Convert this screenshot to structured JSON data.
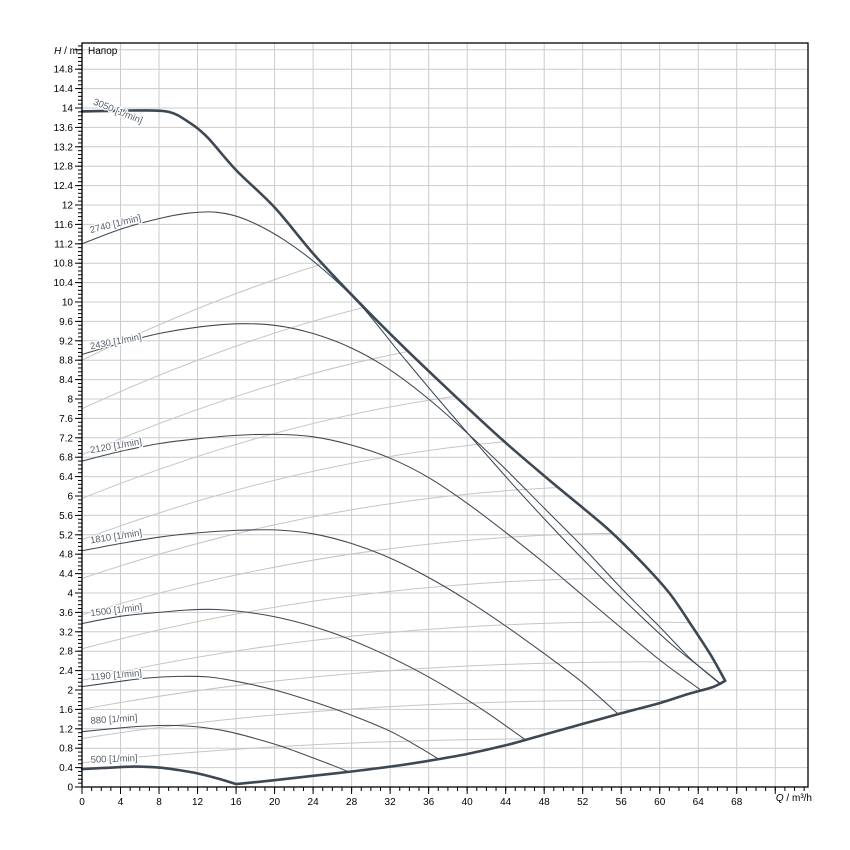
{
  "title": "Напор",
  "axes": {
    "y": {
      "symbol": "H",
      "unit": " / m",
      "max": 15.34,
      "label_step": 0.4,
      "minor_step": 0.08,
      "tick_labels": [
        "0",
        "0.4",
        "0.8",
        "1.2",
        "1.6",
        "2",
        "2.4",
        "2.8",
        "3.2",
        "3.6",
        "4",
        "4.4",
        "4.8",
        "5.2",
        "5.6",
        "6",
        "6.4",
        "6.8",
        "7.2",
        "7.6",
        "8",
        "8.4",
        "8.8",
        "9.2",
        "9.6",
        "10",
        "10.4",
        "10.8",
        "11.2",
        "11.6",
        "12",
        "12.4",
        "12.8",
        "13.2",
        "13.6",
        "14",
        "14.4",
        "14.8"
      ]
    },
    "x": {
      "symbol": "Q",
      "unit": " / m³/h",
      "max": 75.4,
      "label_step": 4,
      "minor_step": 1,
      "tick_labels": [
        "0",
        "4",
        "8",
        "12",
        "16",
        "20",
        "24",
        "28",
        "32",
        "36",
        "40",
        "44",
        "48",
        "52",
        "56",
        "60",
        "64",
        "68"
      ]
    }
  },
  "colors": {
    "background": "#ffffff",
    "curve": "#3d4854",
    "grid": "#cccccc",
    "efficiency": "#c5c5c5",
    "axis": "#000000",
    "tick_text": "#000000",
    "curve_label": "#555f6a"
  },
  "chart_data": {
    "type": "line",
    "title": "Напор",
    "xlabel": "Q / m³/h",
    "ylabel": "H / m",
    "xlim": [
      0,
      75.4
    ],
    "ylim": [
      0,
      15.34
    ],
    "grid": {
      "on": true,
      "x_step": 4,
      "y_step": 0.4
    },
    "legend": "labels-on-curves",
    "series": [
      {
        "name": "3050 [1/min]",
        "rpm": 3050,
        "thick": true,
        "points": [
          [
            0,
            13.93
          ],
          [
            3,
            13.94
          ],
          [
            6,
            13.95
          ],
          [
            9,
            13.92
          ],
          [
            11,
            13.72
          ],
          [
            13,
            13.4
          ],
          [
            16,
            12.72
          ],
          [
            20,
            11.95
          ],
          [
            24,
            11.0
          ],
          [
            28,
            10.15
          ],
          [
            33,
            9.15
          ],
          [
            38,
            8.2
          ],
          [
            43.7,
            7.15
          ],
          [
            49,
            6.25
          ],
          [
            54.5,
            5.34
          ],
          [
            58,
            4.66
          ],
          [
            61,
            4.0
          ],
          [
            63.4,
            3.3
          ],
          [
            65.3,
            2.72
          ],
          [
            66.8,
            2.19
          ]
        ]
      },
      {
        "name": "2740 [1/min]",
        "rpm": 2740,
        "thick": false,
        "points": [
          [
            0,
            11.2
          ],
          [
            4,
            11.5
          ],
          [
            8,
            11.72
          ],
          [
            11,
            11.83
          ],
          [
            14,
            11.85
          ],
          [
            17,
            11.7
          ],
          [
            21,
            11.28
          ],
          [
            25,
            10.68
          ],
          [
            29,
            9.92
          ],
          [
            33,
            8.95
          ],
          [
            37,
            8.0
          ],
          [
            41,
            7.08
          ],
          [
            45,
            6.18
          ],
          [
            49,
            5.32
          ],
          [
            53,
            4.5
          ],
          [
            57,
            3.72
          ],
          [
            61,
            2.98
          ],
          [
            64,
            2.5
          ],
          [
            66.4,
            2.12
          ]
        ]
      },
      {
        "name": "2430 [1/min]",
        "rpm": 2430,
        "thick": false,
        "points": [
          [
            0,
            8.92
          ],
          [
            4,
            9.15
          ],
          [
            8,
            9.35
          ],
          [
            12,
            9.48
          ],
          [
            16,
            9.55
          ],
          [
            20,
            9.52
          ],
          [
            24,
            9.35
          ],
          [
            28,
            9.05
          ],
          [
            32,
            8.6
          ],
          [
            36,
            8.0
          ],
          [
            40,
            7.3
          ],
          [
            44,
            6.55
          ],
          [
            48,
            5.75
          ],
          [
            52,
            4.95
          ],
          [
            56,
            4.1
          ],
          [
            60,
            3.3
          ],
          [
            63,
            2.68
          ],
          [
            65.2,
            2.3
          ],
          [
            66.3,
            2.12
          ]
        ]
      },
      {
        "name": "2120 [1/min]",
        "rpm": 2120,
        "thick": false,
        "points": [
          [
            0,
            6.72
          ],
          [
            4,
            6.92
          ],
          [
            8,
            7.08
          ],
          [
            12,
            7.18
          ],
          [
            16,
            7.25
          ],
          [
            20,
            7.27
          ],
          [
            24,
            7.22
          ],
          [
            28,
            7.05
          ],
          [
            32,
            6.78
          ],
          [
            36,
            6.38
          ],
          [
            40,
            5.85
          ],
          [
            44,
            5.25
          ],
          [
            48,
            4.62
          ],
          [
            52,
            3.95
          ],
          [
            56,
            3.28
          ],
          [
            60,
            2.62
          ],
          [
            62.5,
            2.25
          ],
          [
            64.4,
            1.98
          ]
        ]
      },
      {
        "name": "1810 [1/min]",
        "rpm": 1810,
        "thick": false,
        "points": [
          [
            0,
            4.87
          ],
          [
            4,
            5.02
          ],
          [
            8,
            5.15
          ],
          [
            12,
            5.24
          ],
          [
            16,
            5.29
          ],
          [
            20,
            5.3
          ],
          [
            24,
            5.22
          ],
          [
            28,
            5.02
          ],
          [
            32,
            4.72
          ],
          [
            36,
            4.32
          ],
          [
            40,
            3.85
          ],
          [
            44,
            3.32
          ],
          [
            48,
            2.75
          ],
          [
            52,
            2.15
          ],
          [
            55.6,
            1.52
          ]
        ]
      },
      {
        "name": "1500 [1/min]",
        "rpm": 1500,
        "thick": false,
        "points": [
          [
            0,
            3.37
          ],
          [
            4,
            3.52
          ],
          [
            8,
            3.6
          ],
          [
            11,
            3.65
          ],
          [
            14,
            3.66
          ],
          [
            18,
            3.58
          ],
          [
            22,
            3.42
          ],
          [
            26,
            3.18
          ],
          [
            30,
            2.86
          ],
          [
            34,
            2.48
          ],
          [
            38,
            2.04
          ],
          [
            42,
            1.54
          ],
          [
            46,
            0.98
          ]
        ]
      },
      {
        "name": "1190 [1/min]",
        "rpm": 1190,
        "thick": false,
        "points": [
          [
            0,
            2.07
          ],
          [
            4,
            2.18
          ],
          [
            7,
            2.25
          ],
          [
            10,
            2.28
          ],
          [
            13,
            2.27
          ],
          [
            16,
            2.18
          ],
          [
            20,
            2.0
          ],
          [
            24,
            1.76
          ],
          [
            28,
            1.48
          ],
          [
            32,
            1.15
          ],
          [
            35,
            0.82
          ],
          [
            37,
            0.58
          ]
        ]
      },
      {
        "name": "880 [1/min]",
        "rpm": 880,
        "thick": false,
        "points": [
          [
            0,
            1.14
          ],
          [
            3,
            1.2
          ],
          [
            6,
            1.25
          ],
          [
            9,
            1.27
          ],
          [
            12,
            1.24
          ],
          [
            15,
            1.15
          ],
          [
            18,
            1.0
          ],
          [
            21,
            0.82
          ],
          [
            24,
            0.6
          ],
          [
            26,
            0.45
          ],
          [
            27.6,
            0.32
          ]
        ]
      },
      {
        "name": "500 [1/min]",
        "rpm": 500,
        "thick": true,
        "points": [
          [
            0,
            0.37
          ],
          [
            2,
            0.39
          ],
          [
            4,
            0.41
          ],
          [
            5.5,
            0.42
          ],
          [
            8,
            0.4
          ],
          [
            10,
            0.35
          ],
          [
            12,
            0.28
          ],
          [
            14,
            0.18
          ],
          [
            16,
            0.06
          ]
        ]
      }
    ],
    "envelope_bottom": {
      "name": "operating-limit",
      "thick": true,
      "points": [
        [
          16,
          0.06
        ],
        [
          20,
          0.14
        ],
        [
          24,
          0.23
        ],
        [
          28,
          0.32
        ],
        [
          32,
          0.42
        ],
        [
          36,
          0.54
        ],
        [
          40,
          0.68
        ],
        [
          44,
          0.86
        ],
        [
          48,
          1.08
        ],
        [
          52,
          1.3
        ],
        [
          56,
          1.52
        ],
        [
          60,
          1.73
        ],
        [
          63,
          1.92
        ],
        [
          65.5,
          2.06
        ],
        [
          66.8,
          2.19
        ]
      ]
    },
    "efficiency_lines": [
      [
        0,
        0.5,
        30,
        1.15,
        70,
        0.95
      ],
      [
        0,
        1.0,
        30,
        1.95,
        70,
        1.75
      ],
      [
        0,
        1.6,
        31,
        2.75,
        70,
        2.55
      ],
      [
        0,
        2.2,
        32,
        3.65,
        70,
        3.35
      ],
      [
        0,
        2.85,
        33,
        4.6,
        70,
        4.25
      ],
      [
        0,
        3.55,
        34,
        5.6,
        70,
        5.15
      ],
      [
        0,
        4.3,
        35,
        6.65,
        70,
        6.1
      ],
      [
        0,
        5.1,
        36,
        7.75,
        70,
        7.1
      ],
      [
        0,
        5.95,
        37,
        8.9,
        70,
        8.15
      ],
      [
        0,
        6.85,
        38,
        10.1,
        70,
        9.25
      ],
      [
        0,
        7.8,
        39,
        11.35,
        70,
        10.4
      ],
      [
        0,
        8.8,
        40,
        12.65,
        70,
        11.6
      ]
    ],
    "curve_labels": [
      {
        "text": "3050 [1/min]",
        "x": 1.1,
        "y": 14.08,
        "rot": 22
      },
      {
        "text": "2740 [1/min]",
        "x": 0.9,
        "y": 11.42,
        "rot": -14
      },
      {
        "text": "2430 [1/min]",
        "x": 0.9,
        "y": 9.02,
        "rot": -11
      },
      {
        "text": "2120 [1/min]",
        "x": 0.9,
        "y": 6.88,
        "rot": -10
      },
      {
        "text": "1810 [1/min]",
        "x": 0.9,
        "y": 5.02,
        "rot": -9
      },
      {
        "text": "1500 [1/min]",
        "x": 0.9,
        "y": 3.52,
        "rot": -7
      },
      {
        "text": "1190 [1/min]",
        "x": 0.9,
        "y": 2.2,
        "rot": -5
      },
      {
        "text": "880 [1/min]",
        "x": 0.9,
        "y": 1.3,
        "rot": -4
      },
      {
        "text": "500 [1/min]",
        "x": 0.9,
        "y": 0.5,
        "rot": -2
      }
    ]
  }
}
